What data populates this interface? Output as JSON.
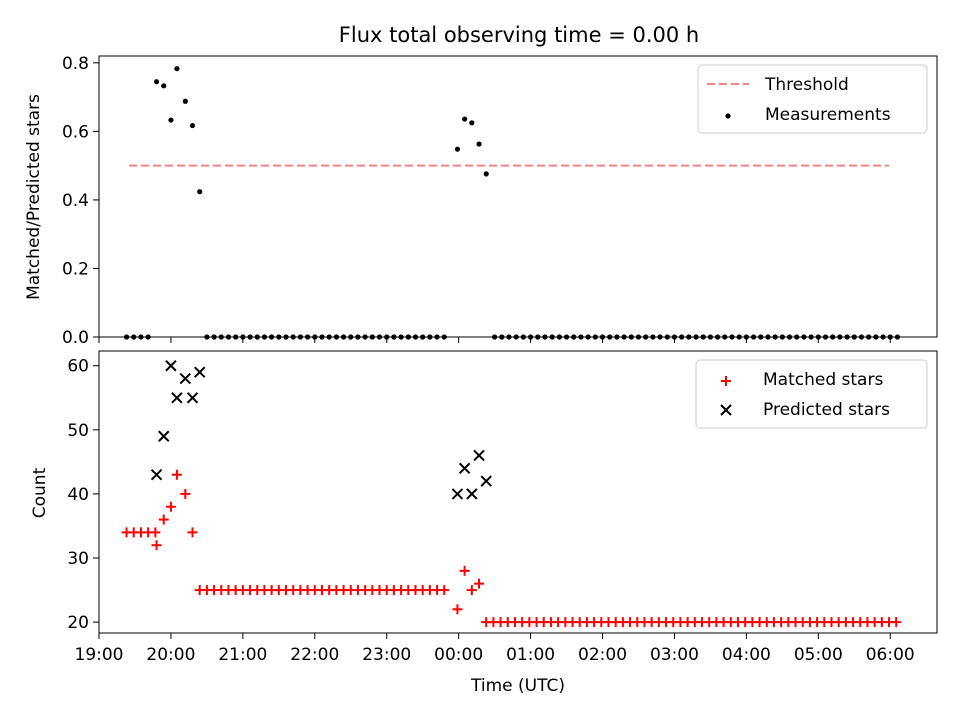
{
  "title": "Flux total observing time = 0.00 h",
  "colors": {
    "threshold": "#ff8080",
    "measurements": "#000000",
    "matched": "#ff0000",
    "predicted": "#000000"
  },
  "chart_data": [
    {
      "type": "scatter",
      "ylabel": "Matched/Predicted stars",
      "xlim": [
        "19:00",
        "06:39"
      ],
      "ylim": [
        0,
        0.82
      ],
      "yticks": [
        0.0,
        0.2,
        0.4,
        0.6,
        0.8
      ],
      "yticklabels": [
        "0.0",
        "0.2",
        "0.4",
        "0.6",
        "0.8"
      ],
      "legend_position": "top-right",
      "threshold": {
        "name": "Threshold",
        "value": 0.5,
        "x_from": "19:25",
        "x_to": "05:59"
      },
      "measurements": {
        "name": "Measurements",
        "points": [
          {
            "x": "19:48",
            "y": 0.745
          },
          {
            "x": "19:54",
            "y": 0.733
          },
          {
            "x": "20:00",
            "y": 0.633
          },
          {
            "x": "20:05",
            "y": 0.783
          },
          {
            "x": "20:12",
            "y": 0.688
          },
          {
            "x": "20:18",
            "y": 0.617
          },
          {
            "x": "20:24",
            "y": 0.424
          },
          {
            "x": "23:59",
            "y": 0.548
          },
          {
            "x": "00:05",
            "y": 0.636
          },
          {
            "x": "00:11",
            "y": 0.625
          },
          {
            "x": "00:17",
            "y": 0.563
          },
          {
            "x": "00:23",
            "y": 0.476
          }
        ],
        "zero_ranges": [
          {
            "from": "19:23",
            "to": "19:44"
          },
          {
            "from": "20:30",
            "to": "23:53"
          },
          {
            "from": "00:30",
            "to": "06:09"
          }
        ],
        "zero_value": 0.0
      }
    },
    {
      "type": "scatter",
      "xlabel": "Time (UTC)",
      "ylabel": "Count",
      "ylim": [
        18.3,
        62.3
      ],
      "yticks": [
        20,
        30,
        40,
        50,
        60
      ],
      "yticklabels": [
        "20",
        "30",
        "40",
        "50",
        "60"
      ],
      "xticks": [
        "19:00",
        "20:00",
        "21:00",
        "22:00",
        "23:00",
        "00:00",
        "01:00",
        "02:00",
        "03:00",
        "04:00",
        "05:00",
        "06:00"
      ],
      "legend_position": "top-right",
      "series": [
        {
          "name": "Matched stars",
          "marker": "plus",
          "points": [
            {
              "x": "19:23",
              "y": 34
            },
            {
              "x": "19:29",
              "y": 34
            },
            {
              "x": "19:35",
              "y": 34
            },
            {
              "x": "19:41",
              "y": 34
            },
            {
              "x": "19:47",
              "y": 34
            },
            {
              "x": "19:48",
              "y": 32
            },
            {
              "x": "19:54",
              "y": 36
            },
            {
              "x": "20:00",
              "y": 38
            },
            {
              "x": "20:05",
              "y": 43
            },
            {
              "x": "20:12",
              "y": 40
            },
            {
              "x": "20:18",
              "y": 34
            },
            {
              "x": "23:59",
              "y": 22
            },
            {
              "x": "00:05",
              "y": 28
            },
            {
              "x": "00:11",
              "y": 25
            },
            {
              "x": "00:17",
              "y": 26
            }
          ],
          "constant_runs": [
            {
              "from": "20:24",
              "to": "23:53",
              "value": 25
            },
            {
              "from": "00:23",
              "to": "06:09",
              "value": 20
            }
          ]
        },
        {
          "name": "Predicted stars",
          "marker": "x",
          "points": [
            {
              "x": "19:48",
              "y": 43
            },
            {
              "x": "19:54",
              "y": 49
            },
            {
              "x": "20:00",
              "y": 60
            },
            {
              "x": "20:05",
              "y": 55
            },
            {
              "x": "20:12",
              "y": 58
            },
            {
              "x": "20:18",
              "y": 55
            },
            {
              "x": "20:24",
              "y": 59
            },
            {
              "x": "23:59",
              "y": 40
            },
            {
              "x": "00:05",
              "y": 44
            },
            {
              "x": "00:11",
              "y": 40
            },
            {
              "x": "00:17",
              "y": 46
            },
            {
              "x": "00:23",
              "y": 42
            }
          ]
        }
      ]
    }
  ]
}
